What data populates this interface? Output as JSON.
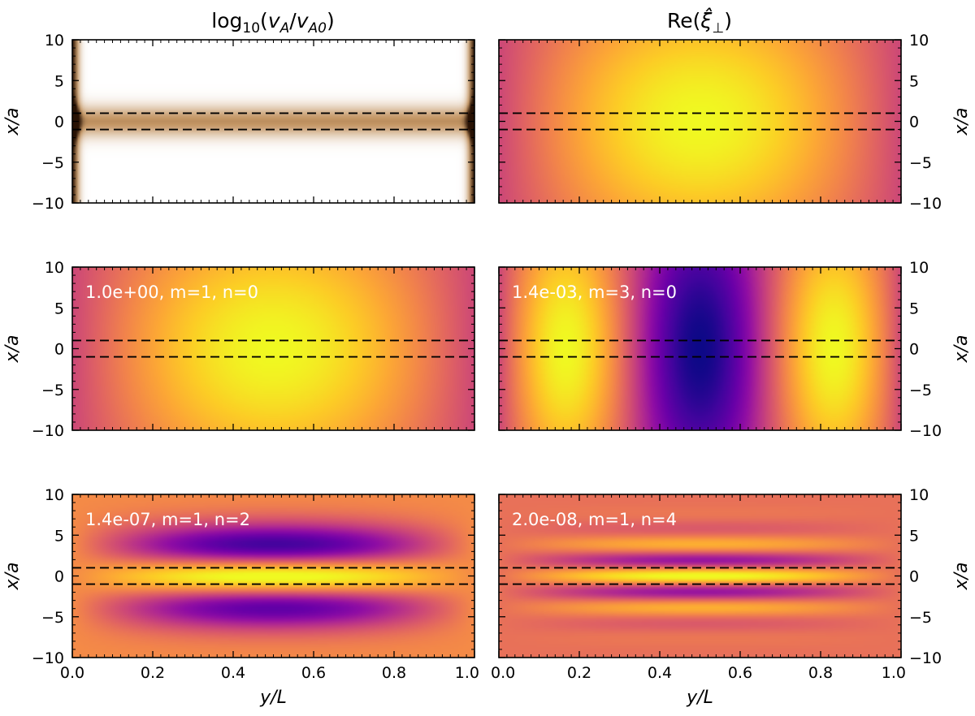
{
  "chart_data": {
    "type": "heatmap",
    "figure_titles": {
      "left": "log₁₀(v_A/v_A0)",
      "right": "Re(ξ̂⊥)"
    },
    "title_parts": {
      "left": {
        "prefix": "log",
        "sub1": "10",
        "open": "(",
        "v1": "v",
        "sub2": "A",
        "slash": "/",
        "v2": "v",
        "sub3": "A0",
        "close": ")"
      },
      "right": {
        "prefix": "Re(",
        "xi": "ξ̂",
        "sub": "⊥",
        "close": ")"
      }
    },
    "xlabel": "y/L",
    "ylabel": "x/a",
    "xlim": [
      0.0,
      1.0
    ],
    "ylim": [
      -10,
      10
    ],
    "xticks": [
      0.0,
      0.2,
      0.4,
      0.6,
      0.8,
      1.0
    ],
    "xtick_labels": [
      "0.0",
      "0.2",
      "0.4",
      "0.6",
      "0.8",
      "1.0"
    ],
    "yticks": [
      10,
      5,
      0,
      -5,
      -10
    ],
    "ytick_labels": [
      "10",
      "5",
      "0",
      "−5",
      "−10"
    ],
    "dashed_lines_x_over_a": [
      1,
      -1
    ],
    "panels": [
      {
        "id": "alfven-speed",
        "row": 0,
        "col": 0,
        "field": "log10(vA/vA0)",
        "annotation": "",
        "m": null,
        "n": null,
        "colormap": "copper"
      },
      {
        "id": "mode-fundamental-top",
        "row": 0,
        "col": 1,
        "field": "Re(xi_perp)",
        "annotation": "",
        "m": 1,
        "n": 0,
        "colormap": "plasma"
      },
      {
        "id": "mode-1",
        "row": 1,
        "col": 0,
        "field": "Re(xi_perp)",
        "annotation": "1.0e+00, m=1, n=0",
        "m": 1,
        "n": 0,
        "colormap": "plasma"
      },
      {
        "id": "mode-2",
        "row": 1,
        "col": 1,
        "field": "Re(xi_perp)",
        "annotation": "1.4e-03, m=3, n=0",
        "m": 3,
        "n": 0,
        "colormap": "plasma"
      },
      {
        "id": "mode-3",
        "row": 2,
        "col": 0,
        "field": "Re(xi_perp)",
        "annotation": "1.4e-07, m=1, n=2",
        "m": 1,
        "n": 2,
        "colormap": "plasma"
      },
      {
        "id": "mode-4",
        "row": 2,
        "col": 1,
        "field": "Re(xi_perp)",
        "annotation": "2.0e-08, m=1, n=4",
        "m": 1,
        "n": 4,
        "colormap": "plasma"
      }
    ]
  }
}
